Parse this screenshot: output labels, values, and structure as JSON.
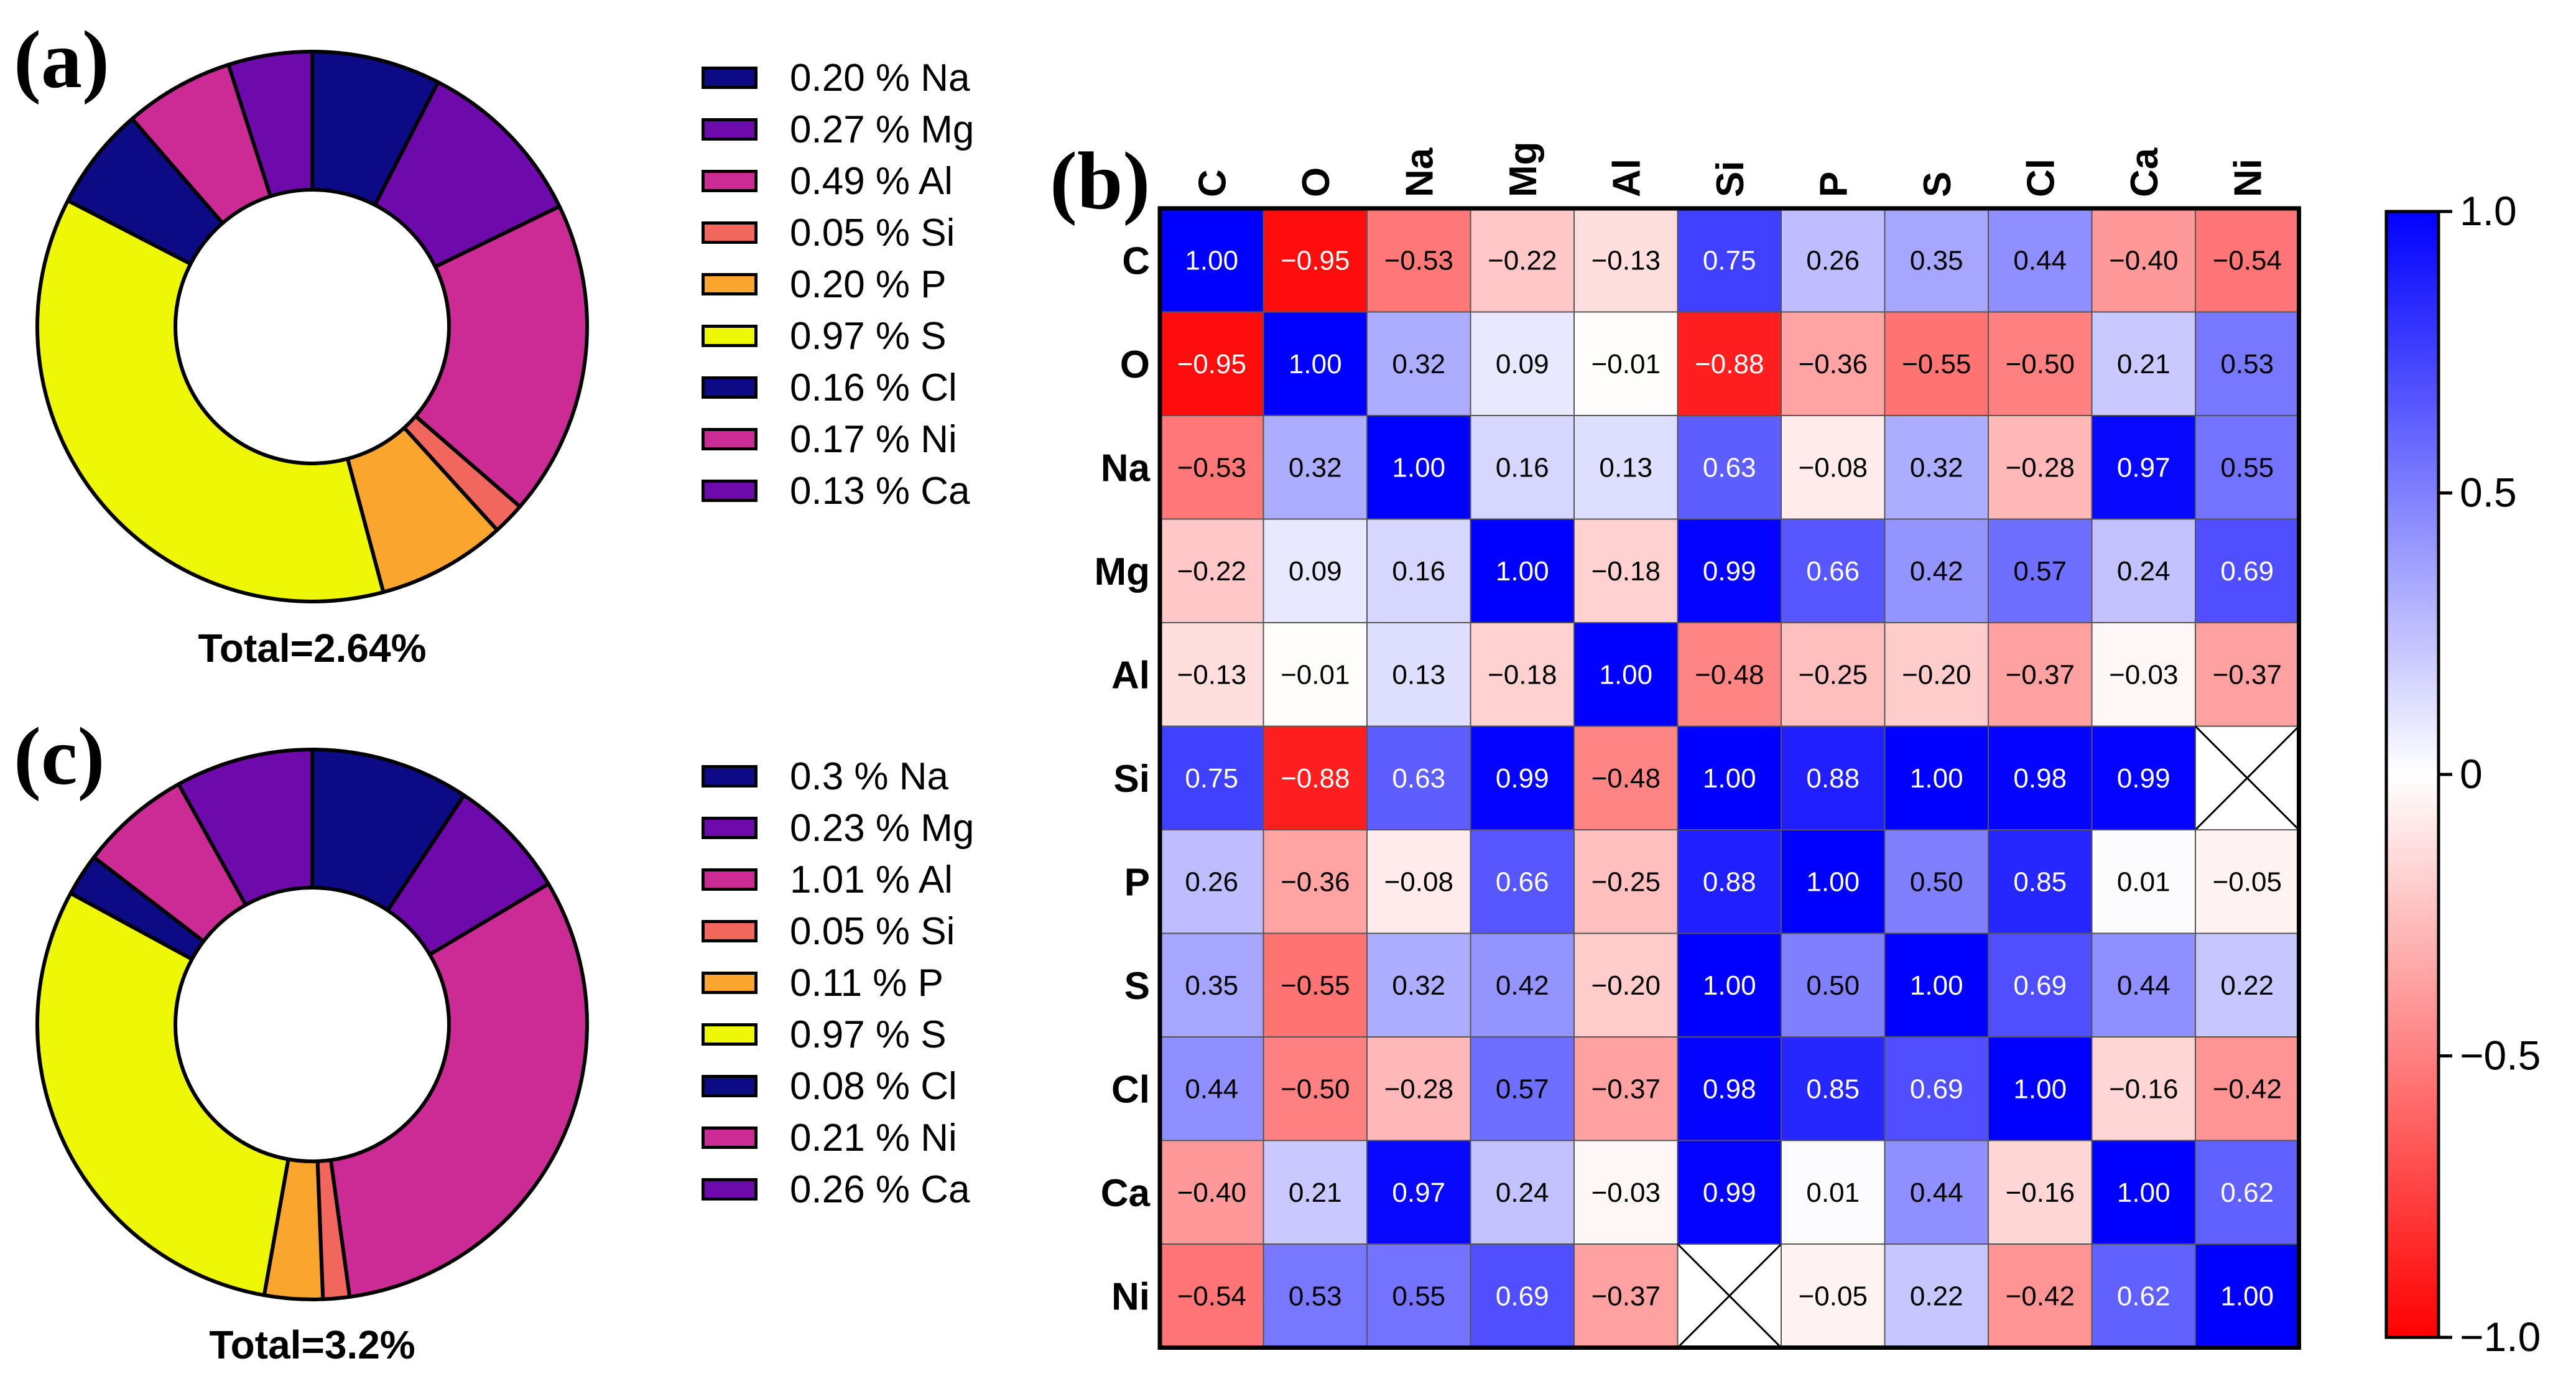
{
  "chart_data": [
    {
      "type": "pie",
      "panel": "(a)",
      "donut": true,
      "total_label": "Total=2.64%",
      "slices": [
        {
          "label": "0.20 % Na",
          "value": 0.2,
          "color": "#0c0a84"
        },
        {
          "label": "0.27 % Mg",
          "value": 0.27,
          "color": "#6e0aab"
        },
        {
          "label": "0.49 % Al",
          "value": 0.49,
          "color": "#cc2a95"
        },
        {
          "label": "0.05 % Si",
          "value": 0.05,
          "color": "#f2675d"
        },
        {
          "label": "0.20 % P",
          "value": 0.2,
          "color": "#faa52d"
        },
        {
          "label": "0.97 % S",
          "value": 0.97,
          "color": "#eef705"
        },
        {
          "label": "0.16 % Cl",
          "value": 0.16,
          "color": "#0c0a84"
        },
        {
          "label": "0.17 % Ni",
          "value": 0.17,
          "color": "#cc2a95"
        },
        {
          "label": "0.13 % Ca",
          "value": 0.13,
          "color": "#6e0aab"
        }
      ]
    },
    {
      "type": "pie",
      "panel": "(c)",
      "donut": true,
      "total_label": "Total=3.2%",
      "slices": [
        {
          "label": "0.3 % Na",
          "value": 0.3,
          "color": "#0c0a84"
        },
        {
          "label": "0.23 % Mg",
          "value": 0.23,
          "color": "#6e0aab"
        },
        {
          "label": "1.01 % Al",
          "value": 1.01,
          "color": "#cc2a95"
        },
        {
          "label": "0.05 % Si",
          "value": 0.05,
          "color": "#f2675d"
        },
        {
          "label": "0.11 % P",
          "value": 0.11,
          "color": "#faa52d"
        },
        {
          "label": "0.97 % S",
          "value": 0.97,
          "color": "#eef705"
        },
        {
          "label": "0.08 % Cl",
          "value": 0.08,
          "color": "#0c0a84"
        },
        {
          "label": "0.21 % Ni",
          "value": 0.21,
          "color": "#cc2a95"
        },
        {
          "label": "0.26 % Ca",
          "value": 0.26,
          "color": "#6e0aab"
        }
      ]
    },
    {
      "type": "heatmap",
      "panel": "(b)",
      "labels": [
        "C",
        "O",
        "Na",
        "Mg",
        "Al",
        "Si",
        "P",
        "S",
        "Cl",
        "Ca",
        "Ni"
      ],
      "matrix": [
        [
          1.0,
          -0.95,
          -0.53,
          -0.22,
          -0.13,
          0.75,
          0.26,
          0.35,
          0.44,
          -0.4,
          -0.54
        ],
        [
          -0.95,
          1.0,
          0.32,
          0.09,
          -0.01,
          -0.88,
          -0.36,
          -0.55,
          -0.5,
          0.21,
          0.53
        ],
        [
          -0.53,
          0.32,
          1.0,
          0.16,
          0.13,
          0.63,
          -0.08,
          0.32,
          -0.28,
          0.97,
          0.55
        ],
        [
          -0.22,
          0.09,
          0.16,
          1.0,
          -0.18,
          0.99,
          0.66,
          0.42,
          0.57,
          0.24,
          0.69
        ],
        [
          -0.13,
          -0.01,
          0.13,
          -0.18,
          1.0,
          -0.48,
          -0.25,
          -0.2,
          -0.37,
          -0.03,
          -0.37
        ],
        [
          0.75,
          -0.88,
          0.63,
          0.99,
          -0.48,
          1.0,
          0.88,
          1.0,
          0.98,
          0.99,
          null
        ],
        [
          0.26,
          -0.36,
          -0.08,
          0.66,
          -0.25,
          0.88,
          1.0,
          0.5,
          0.85,
          0.01,
          -0.05
        ],
        [
          0.35,
          -0.55,
          0.32,
          0.42,
          -0.2,
          1.0,
          0.5,
          1.0,
          0.69,
          0.44,
          0.22
        ],
        [
          0.44,
          -0.5,
          -0.28,
          0.57,
          -0.37,
          0.98,
          0.85,
          0.69,
          1.0,
          -0.16,
          -0.42
        ],
        [
          -0.4,
          0.21,
          0.97,
          0.24,
          -0.03,
          0.99,
          0.01,
          0.44,
          -0.16,
          1.0,
          0.62
        ],
        [
          -0.54,
          0.53,
          0.55,
          0.69,
          -0.37,
          null,
          -0.05,
          0.22,
          -0.42,
          0.62,
          1.0
        ]
      ],
      "colorbar": {
        "range": [
          -1.0,
          1.0
        ],
        "ticks": [
          1.0,
          0.5,
          0,
          -0.5,
          -1.0
        ],
        "tick_labels": [
          "1.0",
          "0.5",
          "0",
          "−0.5",
          "−1.0"
        ],
        "low_color": "#ff0000",
        "mid_color": "#ffffff",
        "high_color": "#0000ff"
      }
    }
  ]
}
